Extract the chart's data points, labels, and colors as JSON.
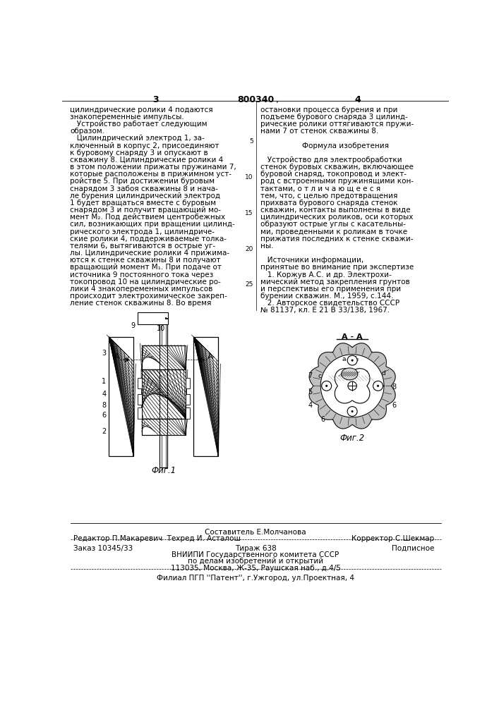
{
  "page_number_left": "3",
  "patent_number": "800340",
  "page_number_right": "4",
  "col_left_text": [
    "цилиндрические ролики 4 подаются",
    "знакопеременные импульсы.",
    "   Устройство работает следующим",
    "образом.",
    "   Цилиндрический электрод 1, за-",
    "ключенный в корпус 2, присоединяют",
    "к буровому снаряду 3 и опускают в",
    "скважину 8. Цилиндрические ролики 4",
    "в этом положении прижаты пружинами 7,",
    "которые расположены в прижимном уст-",
    "ройстве 5. При достижении буровым",
    "снарядом 3 забоя скважины 8 и нача-",
    "ле бурения цилиндрический электрод",
    "1 будет вращаться вместе с буровым",
    "снарядом 3 и получит вращающий мо-",
    "мент М₂. Под действием центробежных",
    "сил, возникающих при вращении цилинд-",
    "рического электрода 1, цилиндриче-",
    "ские ролики 4, поддерживаемые толка-",
    "телями 6, вытягиваются в острые уг-",
    "лы. Цилиндрические ролики 4 прижима-",
    "ются к стенке скважины 8 и получают",
    "вращающий момент М₁. При подаче от",
    "источника 9 постоянного тока через",
    "токопровод 10 на цилиндрические ро-",
    "лики 4 знакопеременных импульсов",
    "происходит электрохимическое закреп-",
    "ление стенок скважины 8. Во время"
  ],
  "col_right_text": [
    "остановки процесса бурения и при",
    "подъеме бурового снаряда 3 цилинд-",
    "рические ролики оттягиваются пружи-",
    "нами 7 от стенок скважины 8.",
    "",
    "Формула изобретения",
    "",
    "   Устройство для электрообработки",
    "стенок буровых скважин, включающее",
    "буровой снаряд, токопровод и элект-",
    "род с встроенными пружинящими кон-",
    "тактами, о т л и ч а ю щ е е с я",
    "тем, что, с целью предотвращения",
    "прихвата бурового снаряда стенок",
    "скважин, контакты выполнены в виде",
    "цилиндрических роликов, оси которых",
    "образуют острые углы с касательны-",
    "ми, проведенными к роликам в точке",
    "прижатия последних к стенке скважи-",
    "ны.",
    "",
    "   Источники информации,",
    "принятые во внимание при экспертизе",
    "   1. Коржув А.С. и др. Электрохи-",
    "мический метод закрепления грунтов",
    "и перспективы его применения при",
    "бурении скважин. М., 1959, с.144.",
    "   2. Авторское свидетельство СССР",
    "№ 81137, кл. Е 21 В 33/138, 1967."
  ],
  "footer_line1": "Составитель Е.Молчанова",
  "footer_line2_left": "Редактор П.Макаревич  Техред И. Асталош",
  "footer_line2_right": "Корректор С.Шекмар",
  "footer_line3_left": "Заказ 10345/33",
  "footer_line3_mid": "Тираж 638",
  "footer_line3_right": "Подписное",
  "footer_line4": "ВНИИПИ Государственного комитета СССР",
  "footer_line5": "по делам изобретений и открытий",
  "footer_line6": "113035, Москва, Ж-35, Раушская наб., д.4/5",
  "footer_line7": "Филиал ПГП ''Патент'', г.Ужгород, ул.Проектная, 4",
  "bg_color": "#ffffff",
  "text_color": "#000000",
  "fig1_caption": "Фиг.1",
  "fig2_caption": "Фиг.2",
  "section_aa": "А - А"
}
